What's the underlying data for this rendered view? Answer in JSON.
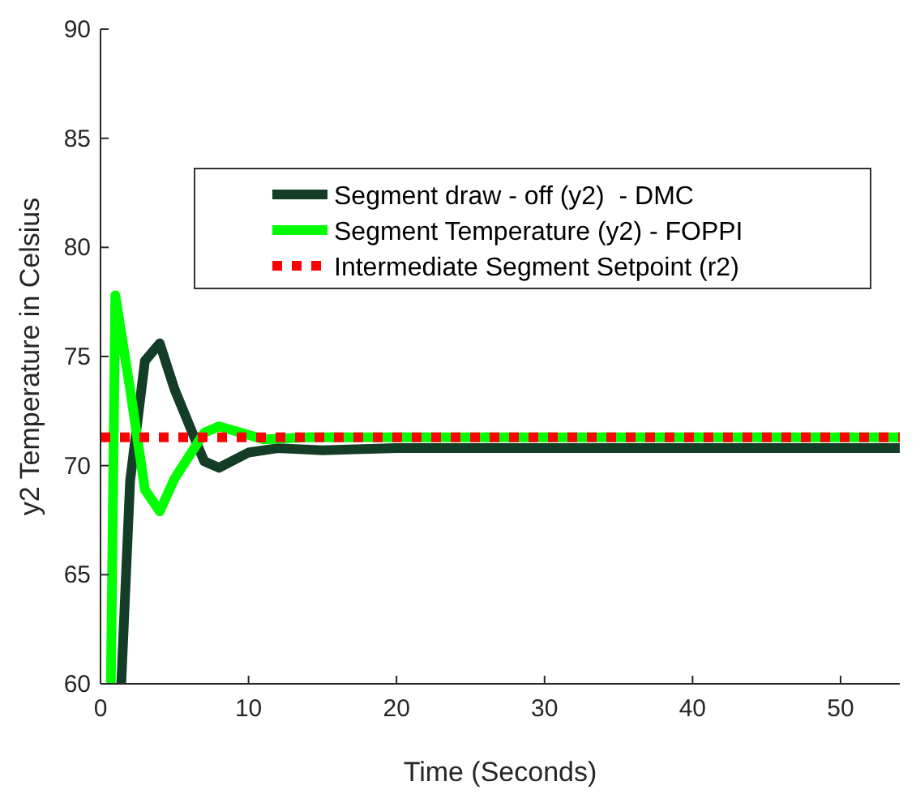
{
  "chart_data": {
    "type": "line",
    "xlabel": "Time (Seconds)",
    "ylabel": "y2 Temperature in Celsius",
    "xlim": [
      0,
      54
    ],
    "ylim": [
      60,
      90
    ],
    "xticks": [
      0,
      10,
      20,
      30,
      40,
      50
    ],
    "yticks": [
      60,
      65,
      70,
      75,
      80,
      85,
      90
    ],
    "legend": "top right",
    "grid": false,
    "series": [
      {
        "name": "Segment draw - off (y2)  - DMC",
        "color": "#143d27",
        "line_style": "solid",
        "x": [
          1.4,
          2,
          3,
          4,
          5,
          7,
          8,
          10,
          12,
          15,
          20,
          30,
          40,
          54
        ],
        "values": [
          60,
          69.3,
          74.8,
          75.6,
          73.5,
          70.2,
          69.9,
          70.6,
          70.8,
          70.7,
          70.8,
          70.8,
          70.8,
          70.8
        ]
      },
      {
        "name": "Segment Temperature (y2) - FOPPI",
        "color": "#00ff00",
        "line_style": "solid",
        "x": [
          0.7,
          1,
          2,
          3,
          4,
          5,
          7,
          8,
          9,
          11,
          14,
          20,
          30,
          40,
          54
        ],
        "values": [
          60,
          77.8,
          73.5,
          68.9,
          67.9,
          69.4,
          71.5,
          71.8,
          71.6,
          71.2,
          71.3,
          71.3,
          71.3,
          71.3,
          71.3
        ]
      },
      {
        "name": "Intermediate Segment Setpoint (r2)",
        "color": "#ff0000",
        "line_style": "dotted",
        "x": [
          0,
          54
        ],
        "values": [
          71.3,
          71.3
        ]
      }
    ]
  }
}
